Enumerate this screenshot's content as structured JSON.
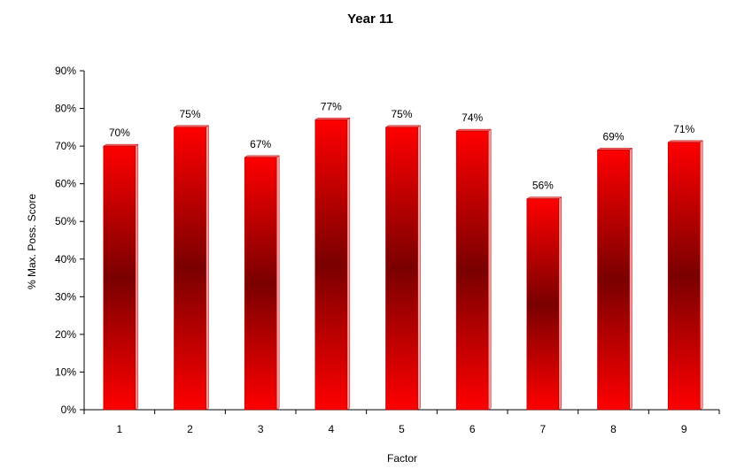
{
  "chart_data": {
    "type": "bar",
    "title": "Year 11",
    "xlabel": "Factor",
    "ylabel": "% Max. Poss. Score",
    "categories": [
      "1",
      "2",
      "3",
      "4",
      "5",
      "6",
      "7",
      "8",
      "9"
    ],
    "values": [
      70,
      75,
      67,
      77,
      75,
      74,
      56,
      69,
      71
    ],
    "data_labels": [
      "70%",
      "75%",
      "67%",
      "77%",
      "75%",
      "74%",
      "56%",
      "69%",
      "71%"
    ],
    "ylim": [
      0,
      90
    ],
    "yticks": [
      "0%",
      "10%",
      "20%",
      "30%",
      "40%",
      "50%",
      "60%",
      "70%",
      "80%",
      "90%"
    ],
    "grid": false,
    "legend": "none",
    "colors": {
      "bar_edge": "#ff0000",
      "bar_center": "#7a0000",
      "bar_side": "#ff9a9a",
      "axis": "#000000"
    }
  }
}
